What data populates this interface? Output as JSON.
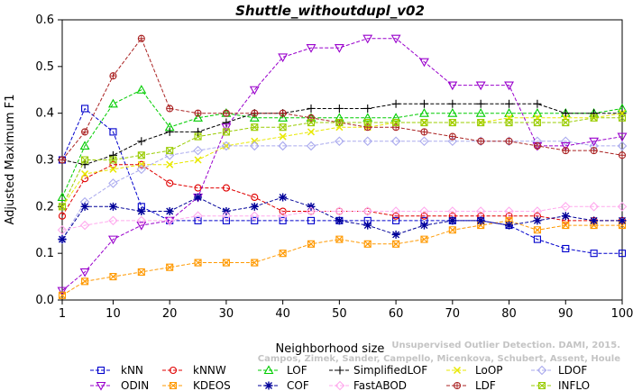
{
  "chart_data": {
    "type": "line",
    "title": "Shuttle_withoutdupl_v02",
    "xlabel": "Neighborhood size",
    "ylabel": "Adjusted Maximum F1",
    "xlim": [
      1,
      100
    ],
    "ylim": [
      0,
      0.6
    ],
    "xticks": [
      "1",
      "10",
      "20",
      "30",
      "40",
      "50",
      "60",
      "70",
      "80",
      "90",
      "100"
    ],
    "yticks": [
      "0.0",
      "0.1",
      "0.2",
      "0.3",
      "0.4",
      "0.5",
      "0.6"
    ],
    "watermark": [
      "Campos, Zimek, Sander, Campello, Micenkova, Schubert, Assent, Houle",
      "Unsupervised Outlier Detection. DAMI, 2015."
    ],
    "x": [
      1,
      5,
      10,
      15,
      20,
      25,
      30,
      35,
      40,
      45,
      50,
      55,
      60,
      65,
      70,
      75,
      80,
      85,
      90,
      95,
      100
    ],
    "series": [
      {
        "name": "kNN",
        "color": "#0000cc",
        "marker": "square",
        "values": [
          0.3,
          0.41,
          0.36,
          0.2,
          0.17,
          0.17,
          0.17,
          0.17,
          0.17,
          0.17,
          0.17,
          0.17,
          0.17,
          0.17,
          0.17,
          0.17,
          0.16,
          0.13,
          0.11,
          0.1,
          0.1
        ]
      },
      {
        "name": "kNNW",
        "color": "#e00000",
        "marker": "circle",
        "values": [
          0.18,
          0.26,
          0.29,
          0.29,
          0.25,
          0.24,
          0.24,
          0.22,
          0.19,
          0.19,
          0.19,
          0.19,
          0.18,
          0.18,
          0.18,
          0.18,
          0.18,
          0.18,
          0.17,
          0.17,
          0.17
        ]
      },
      {
        "name": "LOF",
        "color": "#00cc00",
        "marker": "triangle",
        "values": [
          0.22,
          0.33,
          0.42,
          0.45,
          0.37,
          0.39,
          0.4,
          0.39,
          0.39,
          0.39,
          0.39,
          0.39,
          0.39,
          0.4,
          0.4,
          0.4,
          0.4,
          0.4,
          0.4,
          0.4,
          0.41
        ]
      },
      {
        "name": "SimplifiedLOF",
        "color": "#000000",
        "marker": "plus",
        "values": [
          0.3,
          0.29,
          0.31,
          0.34,
          0.36,
          0.36,
          0.38,
          0.4,
          0.4,
          0.41,
          0.41,
          0.41,
          0.42,
          0.42,
          0.42,
          0.42,
          0.42,
          0.42,
          0.4,
          0.4,
          0.4
        ]
      },
      {
        "name": "LoOP",
        "color": "#e8e800",
        "marker": "x",
        "values": [
          0.2,
          0.27,
          0.28,
          0.29,
          0.29,
          0.3,
          0.33,
          0.34,
          0.35,
          0.36,
          0.37,
          0.37,
          0.38,
          0.38,
          0.38,
          0.38,
          0.39,
          0.39,
          0.39,
          0.39,
          0.4
        ]
      },
      {
        "name": "LDOF",
        "color": "#aaaaee",
        "marker": "diamond",
        "values": [
          0.13,
          0.21,
          0.25,
          0.28,
          0.31,
          0.32,
          0.33,
          0.33,
          0.33,
          0.33,
          0.34,
          0.34,
          0.34,
          0.34,
          0.34,
          0.34,
          0.34,
          0.34,
          0.34,
          0.33,
          0.33
        ]
      },
      {
        "name": "ODIN",
        "color": "#9900cc",
        "marker": "triangle-down",
        "values": [
          0.02,
          0.06,
          0.13,
          0.16,
          0.17,
          0.22,
          0.37,
          0.45,
          0.52,
          0.54,
          0.54,
          0.56,
          0.56,
          0.51,
          0.46,
          0.46,
          0.46,
          0.33,
          0.33,
          0.34,
          0.35
        ]
      },
      {
        "name": "KDEOS",
        "color": "#ff9900",
        "marker": "square-x",
        "values": [
          0.01,
          0.04,
          0.05,
          0.06,
          0.07,
          0.08,
          0.08,
          0.08,
          0.1,
          0.12,
          0.13,
          0.12,
          0.12,
          0.13,
          0.15,
          0.16,
          0.17,
          0.15,
          0.16,
          0.16,
          0.16
        ]
      },
      {
        "name": "COF",
        "color": "#000099",
        "marker": "star",
        "values": [
          0.13,
          0.2,
          0.2,
          0.19,
          0.19,
          0.22,
          0.19,
          0.2,
          0.22,
          0.2,
          0.17,
          0.16,
          0.14,
          0.16,
          0.17,
          0.17,
          0.16,
          0.17,
          0.18,
          0.17,
          0.17
        ]
      },
      {
        "name": "FastABOD",
        "color": "#ffaaee",
        "marker": "diamond",
        "values": [
          0.15,
          0.16,
          0.17,
          0.17,
          0.17,
          0.18,
          0.18,
          0.18,
          0.18,
          0.19,
          0.19,
          0.19,
          0.19,
          0.19,
          0.19,
          0.19,
          0.19,
          0.19,
          0.2,
          0.2,
          0.2
        ]
      },
      {
        "name": "LDF",
        "color": "#aa2222",
        "marker": "circle-plus",
        "values": [
          0.3,
          0.36,
          0.48,
          0.56,
          0.41,
          0.4,
          0.4,
          0.4,
          0.4,
          0.39,
          0.38,
          0.37,
          0.37,
          0.36,
          0.35,
          0.34,
          0.34,
          0.33,
          0.32,
          0.32,
          0.31
        ]
      },
      {
        "name": "INFLO",
        "color": "#99cc00",
        "marker": "square-x",
        "values": [
          0.2,
          0.3,
          0.3,
          0.31,
          0.32,
          0.35,
          0.36,
          0.37,
          0.37,
          0.38,
          0.38,
          0.38,
          0.38,
          0.38,
          0.38,
          0.38,
          0.38,
          0.38,
          0.38,
          0.39,
          0.39
        ]
      }
    ],
    "legend_placement": "bottom",
    "grid": false
  }
}
